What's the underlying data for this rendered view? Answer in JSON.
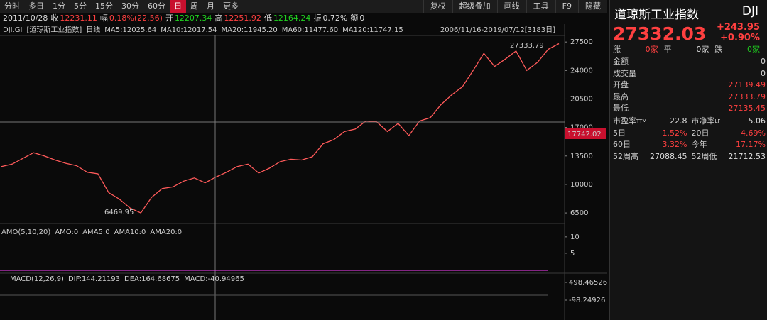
{
  "toolbar": {
    "periods": [
      "分时",
      "多日",
      "1分",
      "5分",
      "15分",
      "30分",
      "60分",
      "日",
      "周",
      "月",
      "更多"
    ],
    "active_index": 7,
    "tools": [
      "复权",
      "超级叠加",
      "画线",
      "工具",
      "F9",
      "隐藏"
    ]
  },
  "info_bar": {
    "date": "2011/10/28",
    "items": [
      {
        "label": "收",
        "value": "12231.11",
        "color": "#ff4040"
      },
      {
        "label": "幅",
        "value": "0.18%(22.56)",
        "color": "#ff4040"
      },
      {
        "label": "开",
        "value": "12207.34",
        "color": "#20d020"
      },
      {
        "label": "高",
        "value": "12251.92",
        "color": "#ff4040"
      },
      {
        "label": "低",
        "value": "12164.24",
        "color": "#20d020"
      },
      {
        "label": "振",
        "value": "0.72%",
        "color": "#dddddd"
      },
      {
        "label": "额",
        "value": "0",
        "color": "#dddddd"
      }
    ]
  },
  "main_chart": {
    "symbol": "DJI.GI",
    "name": "[道琼斯工业指数]",
    "period": "日线",
    "indicators": [
      {
        "label": "MA5:12025.64",
        "color": "#ffffff"
      },
      {
        "label": "MA10:12017.54",
        "color": "#f0e000"
      },
      {
        "label": "MA20:11945.20",
        "color": "#ff40ff"
      },
      {
        "label": "MA60:11477.60",
        "color": "#20d020"
      },
      {
        "label": "MA120:11747.15",
        "color": "#40e0e0"
      }
    ],
    "range": "2006/11/16-2019/07/12[3183日]",
    "ylim": [
      5200,
      28300
    ],
    "yticks": [
      27500,
      24000,
      20500,
      17000,
      13500,
      10000,
      6500
    ],
    "price_color": "#ff5a5a",
    "price": [
      12200,
      12500,
      13200,
      13900,
      13500,
      13000,
      12600,
      12300,
      11500,
      11300,
      9000,
      8200,
      7100,
      6500,
      8400,
      9500,
      9700,
      10400,
      10800,
      10200,
      10900,
      11500,
      12200,
      12500,
      11400,
      12000,
      12800,
      13100,
      13000,
      13400,
      15000,
      15500,
      16500,
      16800,
      17800,
      17700,
      16500,
      17500,
      16000,
      17800,
      18200,
      19800,
      21000,
      22000,
      24000,
      26100,
      24500,
      25400,
      26400,
      24000,
      25000,
      26600,
      27300
    ],
    "high_label": "27333.79",
    "low_label": "6469.95",
    "cursor_label": "17742.02"
  },
  "amo_panel": {
    "title": "AMO(5,10,20)",
    "indicators": [
      {
        "label": "AMO:0",
        "color": "#dddddd"
      },
      {
        "label": "AMA5:0",
        "color": "#dddddd"
      },
      {
        "label": "AMA10:0",
        "color": "#f0e000"
      },
      {
        "label": "AMA20:0",
        "color": "#ff40ff"
      }
    ],
    "ylim": [
      0,
      13
    ],
    "yticks": [
      10,
      5
    ]
  },
  "macd_panel": {
    "title": "MACD(12,26,9)",
    "indicators": [
      {
        "label": "DIF:144.21193",
        "color": "#dddddd"
      },
      {
        "label": "DEA:164.68675",
        "color": "#f0e000"
      },
      {
        "label": "MACD:-40.94965",
        "color": "#ff40ff"
      }
    ],
    "tick_labels": [
      "498.46526",
      "-98.24926"
    ]
  },
  "quote": {
    "name": "道琼斯工业指数",
    "code": "DJI",
    "price": "27332.03",
    "change": "+243.95",
    "change_pct": "+0.90%",
    "breadth": [
      {
        "label": "涨",
        "value": "0家",
        "color": "#ff4040"
      },
      {
        "label": "平",
        "value": "0家",
        "color": "#dddddd"
      },
      {
        "label": "跌",
        "value": "0家",
        "color": "#20d020"
      }
    ],
    "rows": [
      {
        "label": "金额",
        "value": "0",
        "color": "#dddddd"
      },
      {
        "label": "成交量",
        "value": "0",
        "color": "#dddddd"
      },
      {
        "label": "开盘",
        "value": "27139.49",
        "color": "#ff4040"
      },
      {
        "label": "最高",
        "value": "27333.79",
        "color": "#ff4040"
      },
      {
        "label": "最低",
        "value": "27135.45",
        "color": "#ff4040"
      }
    ],
    "pairs": [
      [
        {
          "label": "市盈率",
          "sup": "TTM",
          "value": "22.8",
          "color": "#dddddd"
        },
        {
          "label": "市净率",
          "sup": "LF",
          "value": "5.06",
          "color": "#dddddd"
        }
      ],
      [
        {
          "label": "5日",
          "value": "1.52%",
          "color": "#ff4040"
        },
        {
          "label": "20日",
          "value": "4.69%",
          "color": "#ff4040"
        }
      ],
      [
        {
          "label": "60日",
          "value": "3.32%",
          "color": "#ff4040"
        },
        {
          "label": "今年",
          "value": "17.17%",
          "color": "#ff4040"
        }
      ],
      [
        {
          "label": "52周高",
          "value": "27088.45",
          "color": "#dddddd"
        },
        {
          "label": "52周低",
          "value": "21712.53",
          "color": "#dddddd"
        }
      ]
    ]
  }
}
